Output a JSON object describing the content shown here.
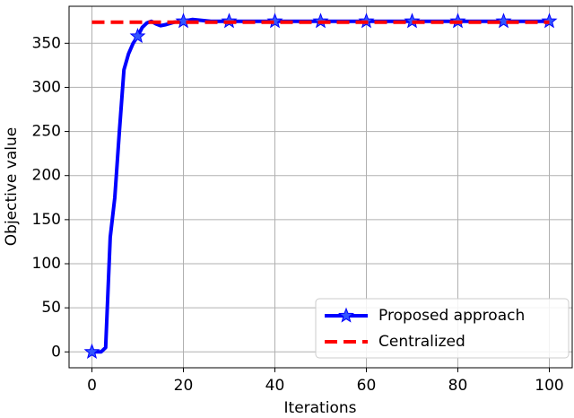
{
  "chart_data": {
    "type": "line",
    "xlabel": "Iterations",
    "ylabel": "Objective value",
    "xlim": [
      -5,
      105
    ],
    "ylim": [
      -18,
      392
    ],
    "xticks": [
      0,
      20,
      40,
      60,
      80,
      100
    ],
    "yticks": [
      0,
      50,
      100,
      150,
      200,
      250,
      300,
      350
    ],
    "grid": true,
    "legend": "lower right",
    "series": [
      {
        "name": "Proposed approach",
        "color": "#0000ff",
        "style": "solid",
        "marker": "star",
        "x": [
          0,
          1,
          2,
          3,
          4,
          5,
          6,
          7,
          8,
          9,
          10,
          11,
          12,
          13,
          14,
          15,
          16,
          18,
          20,
          22,
          24,
          26,
          30,
          40,
          50,
          60,
          70,
          80,
          90,
          100
        ],
        "values": [
          0,
          0,
          0,
          5,
          130,
          175,
          250,
          320,
          338,
          350,
          358,
          368,
          373,
          375,
          372,
          370,
          371,
          374,
          375,
          377,
          376,
          375,
          375,
          375,
          375,
          375,
          375,
          375,
          375,
          375
        ]
      },
      {
        "name": "Centralized",
        "color": "#ff0000",
        "style": "dashed",
        "x": [
          0,
          100
        ],
        "values": [
          374,
          374
        ]
      }
    ]
  }
}
